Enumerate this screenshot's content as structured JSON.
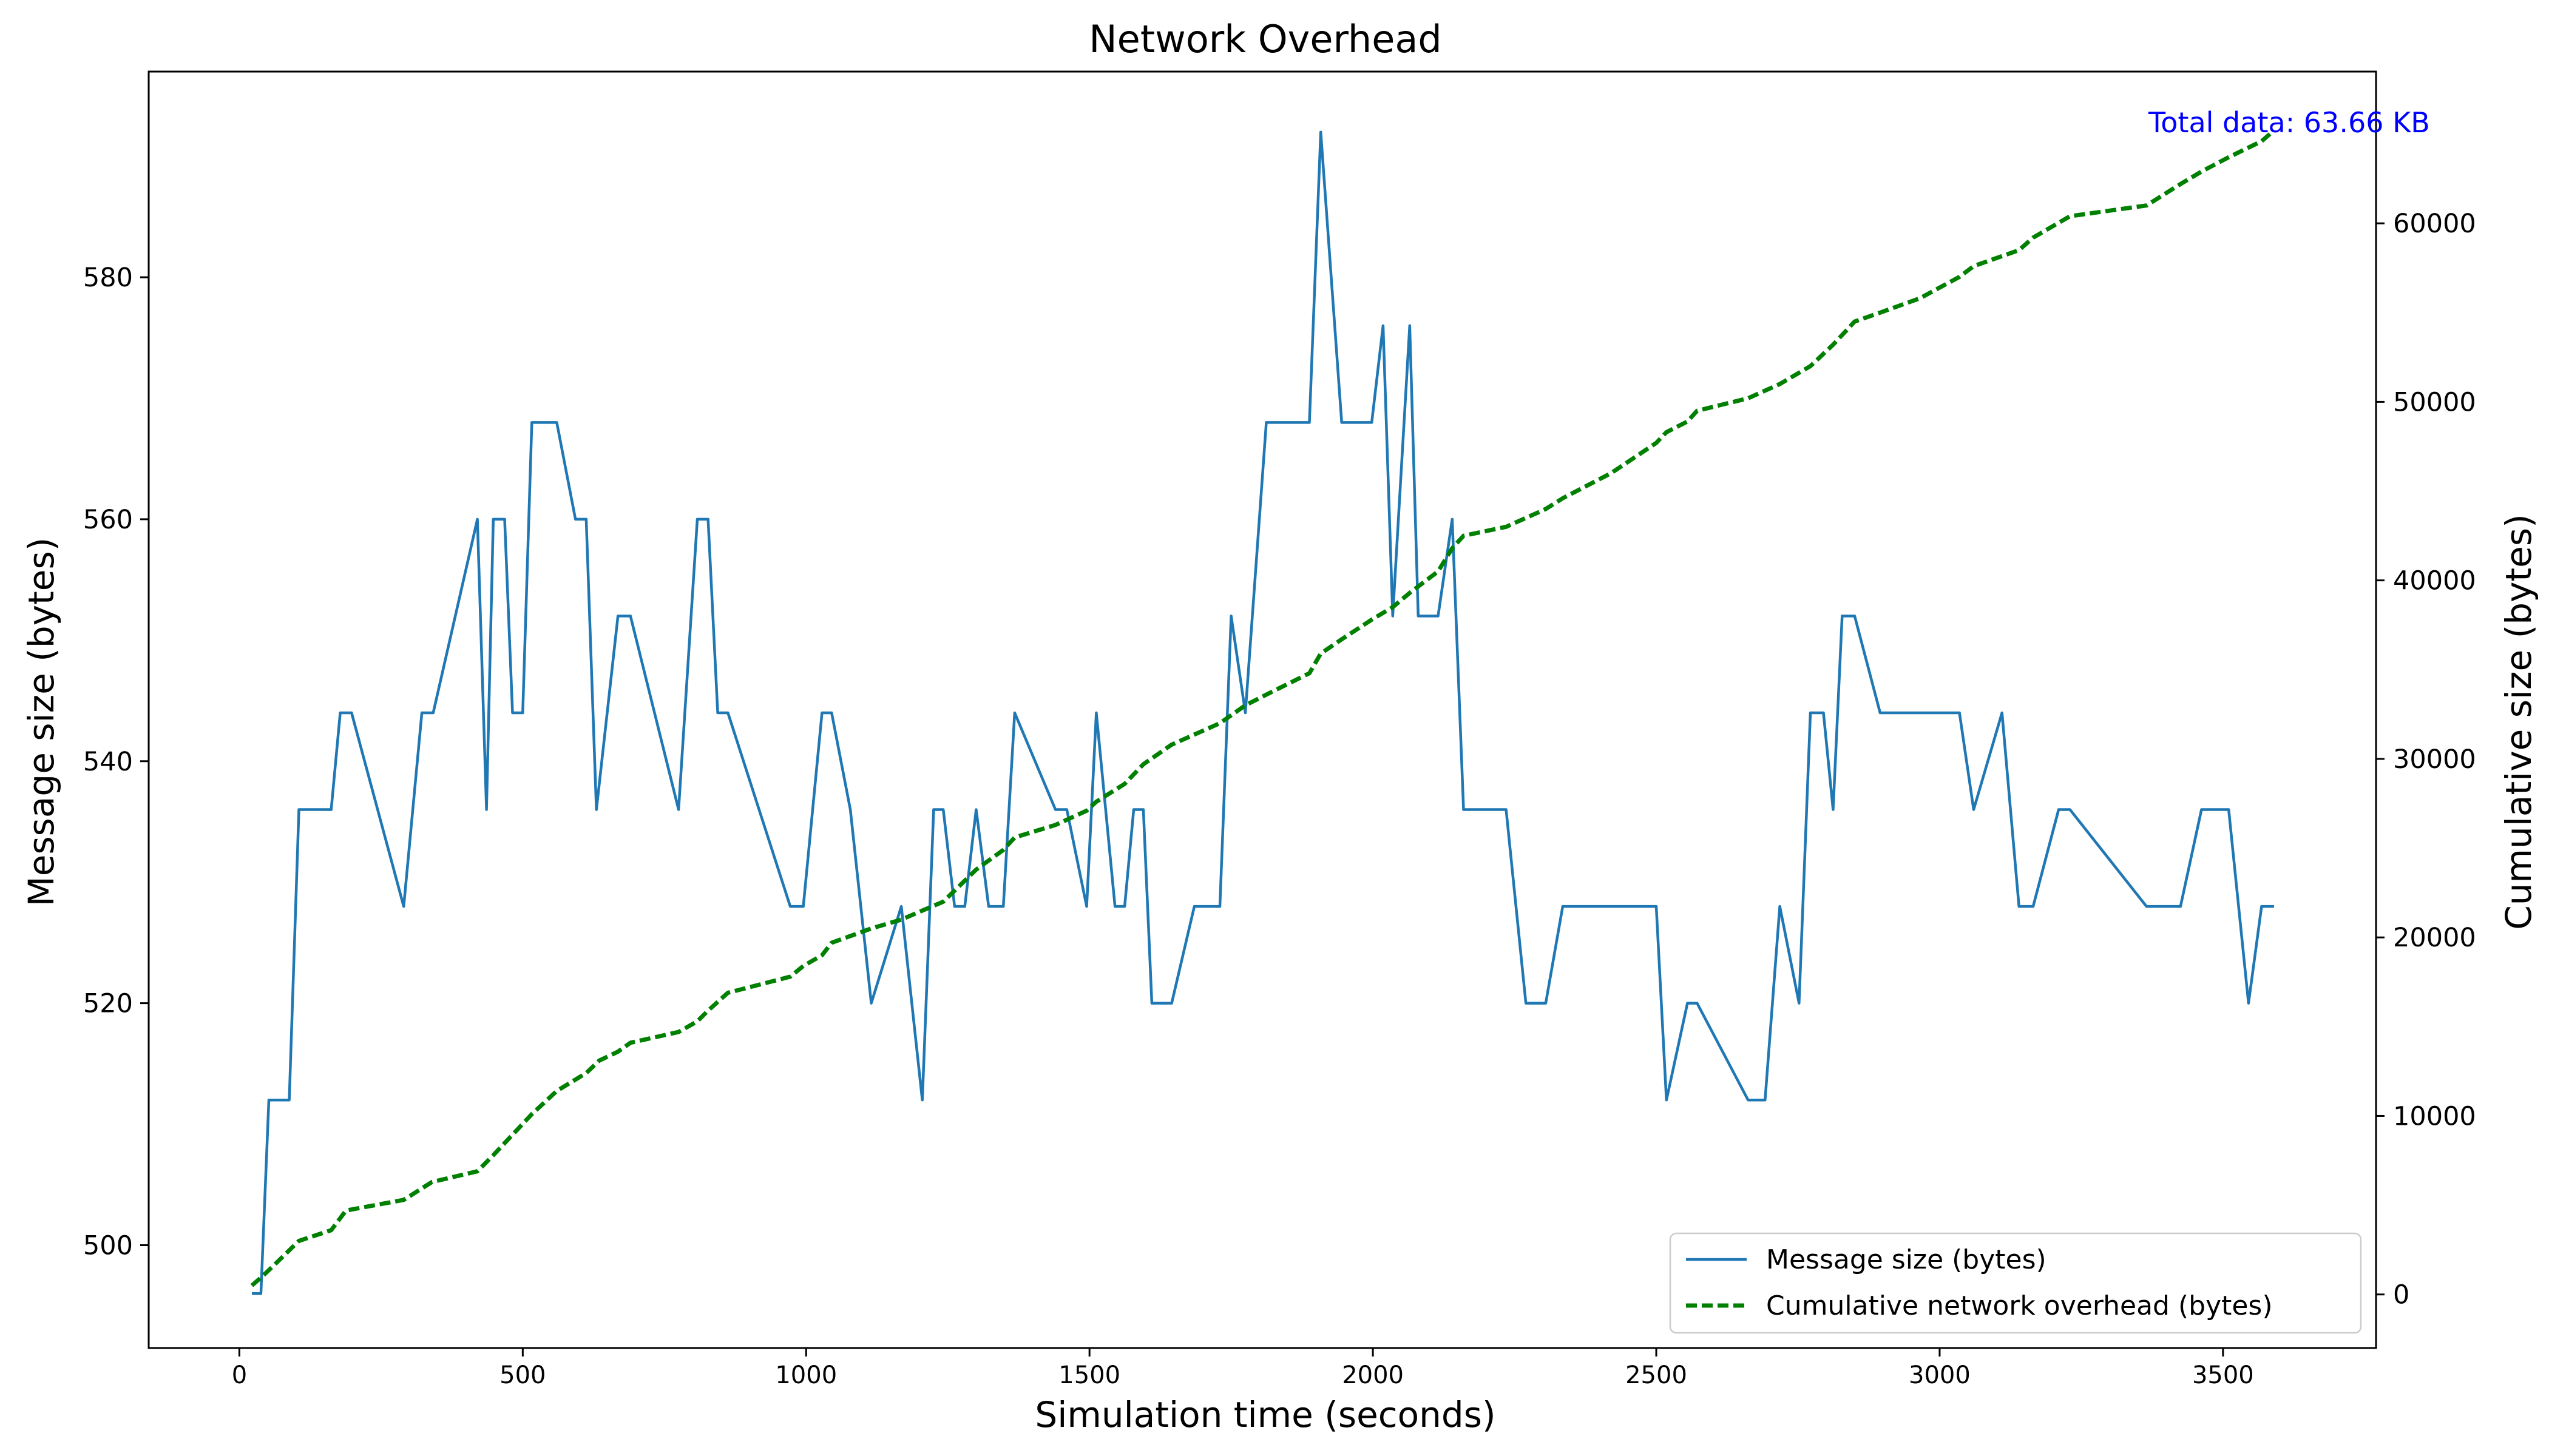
{
  "chart_data": {
    "type": "line",
    "title": "Network Overhead",
    "xlabel": "Simulation time (seconds)",
    "ylabel": "Message size (bytes)",
    "y2label": "Cumulative size (bytes)",
    "xlim": [
      -160,
      3770
    ],
    "ylim": [
      491.5,
      597
    ],
    "y2lim": [
      -3000,
      68500
    ],
    "x_ticks": [
      0,
      500,
      1000,
      1500,
      2000,
      2500,
      3000,
      3500
    ],
    "y_ticks": [
      500,
      520,
      540,
      560,
      580
    ],
    "y2_ticks": [
      0,
      10000,
      20000,
      30000,
      40000,
      50000,
      60000
    ],
    "annotation": "Total data: 63.66 KB",
    "legend_position": "lower-right",
    "colors": {
      "message": "#1f77b4",
      "cumulative": "#008000",
      "annotation": "#0000ff"
    },
    "series": [
      {
        "name": "Message size (bytes)",
        "axis": "left",
        "style": "solid",
        "points": [
          [
            22,
            496
          ],
          [
            38,
            496
          ],
          [
            52,
            512
          ],
          [
            88,
            512
          ],
          [
            105,
            536
          ],
          [
            162,
            536
          ],
          [
            178,
            544
          ],
          [
            198,
            544
          ],
          [
            290,
            528
          ],
          [
            322,
            544
          ],
          [
            342,
            544
          ],
          [
            420,
            560
          ],
          [
            436,
            536
          ],
          [
            448,
            560
          ],
          [
            468,
            560
          ],
          [
            482,
            544
          ],
          [
            500,
            544
          ],
          [
            516,
            568
          ],
          [
            560,
            568
          ],
          [
            593,
            560
          ],
          [
            612,
            560
          ],
          [
            630,
            536
          ],
          [
            668,
            552
          ],
          [
            690,
            552
          ],
          [
            775,
            536
          ],
          [
            808,
            560
          ],
          [
            827,
            560
          ],
          [
            844,
            544
          ],
          [
            862,
            544
          ],
          [
            972,
            528
          ],
          [
            995,
            528
          ],
          [
            1028,
            544
          ],
          [
            1045,
            544
          ],
          [
            1078,
            536
          ],
          [
            1115,
            520
          ],
          [
            1168,
            528
          ],
          [
            1205,
            512
          ],
          [
            1225,
            536
          ],
          [
            1242,
            536
          ],
          [
            1262,
            528
          ],
          [
            1280,
            528
          ],
          [
            1300,
            536
          ],
          [
            1322,
            528
          ],
          [
            1348,
            528
          ],
          [
            1368,
            544
          ],
          [
            1440,
            536
          ],
          [
            1460,
            536
          ],
          [
            1495,
            528
          ],
          [
            1512,
            544
          ],
          [
            1545,
            528
          ],
          [
            1562,
            528
          ],
          [
            1578,
            536
          ],
          [
            1595,
            536
          ],
          [
            1610,
            520
          ],
          [
            1645,
            520
          ],
          [
            1685,
            528
          ],
          [
            1730,
            528
          ],
          [
            1750,
            552
          ],
          [
            1775,
            544
          ],
          [
            1812,
            568
          ],
          [
            1888,
            568
          ],
          [
            1908,
            592
          ],
          [
            1945,
            568
          ],
          [
            1998,
            568
          ],
          [
            2018,
            576
          ],
          [
            2035,
            552
          ],
          [
            2065,
            576
          ],
          [
            2080,
            552
          ],
          [
            2115,
            552
          ],
          [
            2140,
            560
          ],
          [
            2160,
            536
          ],
          [
            2235,
            536
          ],
          [
            2270,
            520
          ],
          [
            2305,
            520
          ],
          [
            2335,
            528
          ],
          [
            2500,
            528
          ],
          [
            2518,
            512
          ],
          [
            2555,
            520
          ],
          [
            2572,
            520
          ],
          [
            2662,
            512
          ],
          [
            2692,
            512
          ],
          [
            2718,
            528
          ],
          [
            2752,
            520
          ],
          [
            2772,
            544
          ],
          [
            2795,
            544
          ],
          [
            2812,
            536
          ],
          [
            2828,
            552
          ],
          [
            2850,
            552
          ],
          [
            2895,
            544
          ],
          [
            3035,
            544
          ],
          [
            3060,
            536
          ],
          [
            3110,
            544
          ],
          [
            3140,
            528
          ],
          [
            3165,
            528
          ],
          [
            3210,
            536
          ],
          [
            3230,
            536
          ],
          [
            3365,
            528
          ],
          [
            3425,
            528
          ],
          [
            3462,
            536
          ],
          [
            3510,
            536
          ],
          [
            3545,
            520
          ],
          [
            3568,
            528
          ],
          [
            3590,
            528
          ]
        ]
      },
      {
        "name": "Cumulative network overhead (bytes)",
        "axis": "right",
        "style": "dashed",
        "points": [
          [
            22,
            500
          ],
          [
            40,
            1000
          ],
          [
            60,
            1600
          ],
          [
            105,
            3000
          ],
          [
            162,
            3600
          ],
          [
            188,
            4700
          ],
          [
            290,
            5300
          ],
          [
            340,
            6300
          ],
          [
            420,
            6900
          ],
          [
            448,
            7800
          ],
          [
            516,
            10100
          ],
          [
            560,
            11400
          ],
          [
            612,
            12400
          ],
          [
            635,
            13100
          ],
          [
            668,
            13600
          ],
          [
            690,
            14100
          ],
          [
            775,
            14700
          ],
          [
            808,
            15300
          ],
          [
            827,
            15900
          ],
          [
            862,
            16900
          ],
          [
            972,
            17800
          ],
          [
            995,
            18400
          ],
          [
            1028,
            19000
          ],
          [
            1045,
            19700
          ],
          [
            1115,
            20500
          ],
          [
            1168,
            21000
          ],
          [
            1205,
            21500
          ],
          [
            1242,
            22000
          ],
          [
            1300,
            23800
          ],
          [
            1348,
            24900
          ],
          [
            1368,
            25600
          ],
          [
            1440,
            26300
          ],
          [
            1495,
            27100
          ],
          [
            1512,
            27600
          ],
          [
            1562,
            28600
          ],
          [
            1595,
            29700
          ],
          [
            1645,
            30800
          ],
          [
            1730,
            32000
          ],
          [
            1775,
            33000
          ],
          [
            1812,
            33600
          ],
          [
            1888,
            34800
          ],
          [
            1908,
            35900
          ],
          [
            1945,
            36700
          ],
          [
            1998,
            37800
          ],
          [
            2035,
            38500
          ],
          [
            2065,
            39300
          ],
          [
            2115,
            40500
          ],
          [
            2140,
            41800
          ],
          [
            2160,
            42500
          ],
          [
            2235,
            43000
          ],
          [
            2305,
            44000
          ],
          [
            2335,
            44600
          ],
          [
            2420,
            46000
          ],
          [
            2500,
            47700
          ],
          [
            2518,
            48300
          ],
          [
            2555,
            48900
          ],
          [
            2572,
            49500
          ],
          [
            2662,
            50200
          ],
          [
            2718,
            51000
          ],
          [
            2772,
            52000
          ],
          [
            2812,
            53200
          ],
          [
            2850,
            54500
          ],
          [
            2895,
            55000
          ],
          [
            2965,
            55800
          ],
          [
            3035,
            57000
          ],
          [
            3060,
            57600
          ],
          [
            3140,
            58500
          ],
          [
            3165,
            59200
          ],
          [
            3230,
            60400
          ],
          [
            3365,
            61000
          ],
          [
            3425,
            62200
          ],
          [
            3462,
            62900
          ],
          [
            3510,
            63700
          ],
          [
            3568,
            64600
          ],
          [
            3590,
            65200
          ]
        ]
      }
    ]
  }
}
